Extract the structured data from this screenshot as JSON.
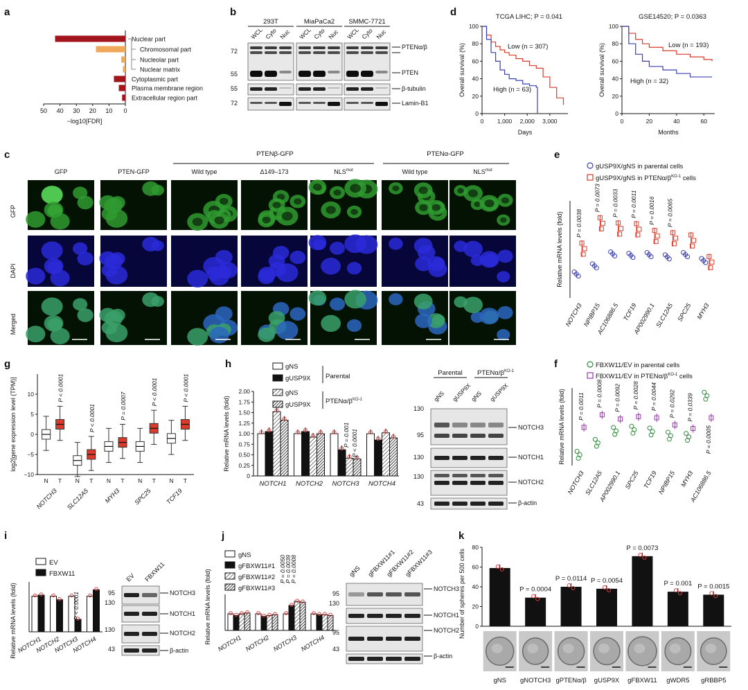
{
  "panels": {
    "a": {
      "letter": "a",
      "xlabel": "−log10[FDR]",
      "ticks": [
        "50",
        "40",
        "30",
        "20",
        "10",
        "0"
      ],
      "chart_data": {
        "type": "bar",
        "orientation": "horizontal",
        "xlabel": "−log10[FDR]",
        "xlim": [
          50,
          0
        ],
        "categories": [
          "Nuclear part",
          "Chromosomal part",
          "Nucleolar part",
          "Nuclear matrix",
          "Cytoplasmic part",
          "Plasma membrane region",
          "Extracellular region part"
        ],
        "values": [
          43,
          18,
          2.5,
          1.5,
          7,
          4,
          2
        ],
        "colors": [
          "#a3151c",
          "#f0a85a",
          "#f0a85a",
          "#f0a85a",
          "#a3151c",
          "#a3151c",
          "#a3151c"
        ]
      }
    },
    "b": {
      "letter": "b",
      "groups": [
        "293T",
        "MiaPaCa2",
        "SMMC-7721"
      ],
      "lanes": [
        "WCL",
        "Cyto",
        "Nuc"
      ],
      "mw": [
        "72",
        "55",
        "55",
        "72"
      ],
      "bands": [
        "PTENα/β",
        "PTEN",
        "β-tubulin",
        "Lamin-B1"
      ]
    },
    "d": {
      "letter": "d",
      "charts": [
        {
          "title": "TCGA LIHC; P = 0.041",
          "xlabel": "Days",
          "ylabel": "Overall survival (%)",
          "xticks": [
            "0",
            "1,000",
            "2,000",
            "3,000"
          ],
          "yticks": [
            "0",
            "20",
            "40",
            "60",
            "80",
            "100"
          ],
          "low_label": "Low (n = 307)",
          "high_label": "High (n = 63)",
          "chart_data": {
            "type": "line",
            "xlabel": "Days",
            "ylabel": "Overall survival (%)",
            "xlim": [
              0,
              3800
            ],
            "ylim": [
              0,
              100
            ],
            "series": [
              {
                "name": "Low (n = 307)",
                "color": "#d93a2b",
                "x": [
                  0,
                  200,
                  400,
                  600,
                  800,
                  1000,
                  1200,
                  1500,
                  1800,
                  2100,
                  2400,
                  2700,
                  3000,
                  3300,
                  3600
                ],
                "y": [
                  100,
                  90,
                  82,
                  77,
                  73,
                  70,
                  67,
                  63,
                  60,
                  55,
                  52,
                  42,
                  30,
                  18,
                  10
                ]
              },
              {
                "name": "High (n = 63)",
                "color": "#3a3fb0",
                "x": [
                  0,
                  200,
                  400,
                  600,
                  800,
                  1000,
                  1200,
                  1500,
                  1800,
                  2100,
                  2400,
                  2450
                ],
                "y": [
                  100,
                  85,
                  70,
                  60,
                  50,
                  45,
                  40,
                  38,
                  34,
                  32,
                  30,
                  0
                ]
              }
            ]
          }
        },
        {
          "title": "GSE14520; P = 0.0363",
          "xlabel": "Months",
          "ylabel": "Overall survival (%)",
          "xticks": [
            "0",
            "20",
            "40",
            "60"
          ],
          "yticks": [
            "0",
            "20",
            "40",
            "60",
            "80",
            "100"
          ],
          "low_label": "Low (n = 193)",
          "high_label": "High (n = 32)",
          "chart_data": {
            "type": "line",
            "xlabel": "Months",
            "ylabel": "Overall survival (%)",
            "xlim": [
              0,
              68
            ],
            "ylim": [
              0,
              100
            ],
            "series": [
              {
                "name": "Low (n = 193)",
                "color": "#d93a2b",
                "x": [
                  0,
                  5,
                  10,
                  15,
                  20,
                  30,
                  40,
                  50,
                  60,
                  66
                ],
                "y": [
                  100,
                  92,
                  85,
                  80,
                  76,
                  72,
                  68,
                  65,
                  62,
                  60
                ]
              },
              {
                "name": "High (n = 32)",
                "color": "#3a3fb0",
                "x": [
                  0,
                  5,
                  10,
                  15,
                  20,
                  30,
                  40,
                  50,
                  60,
                  66
                ],
                "y": [
                  100,
                  80,
                  68,
                  60,
                  54,
                  50,
                  46,
                  42,
                  42,
                  42
                ]
              }
            ]
          }
        }
      ]
    },
    "c": {
      "letter": "c",
      "header_beta": "PTENβ-GFP",
      "header_alpha": "PTENα-GFP",
      "columns": [
        "GFP",
        "PTEN-GFP",
        "Wild type",
        "Δ149–173",
        "NLSmut",
        "Wild type",
        "NLSmut"
      ],
      "rows": [
        "GFP",
        "DAPI",
        "Merged"
      ]
    },
    "e": {
      "letter": "e",
      "legend": [
        "gUSP9X/gNS in parental cells",
        "gUSP9X/gNS in PTENα/βKO-1 cells"
      ],
      "ylabel": "Relative mRNA levels (fold)",
      "genes": [
        "NOTCH3",
        "NPIBP15",
        "AC106886.5",
        "TCF19",
        "AP002990.1",
        "SLC12A5",
        "SPC25",
        "MYH3"
      ],
      "pvalues": [
        "P = 0.0038",
        "P = 0.0073",
        "P = 0.0033",
        "P = 0.0011",
        "P = 0.0016",
        "P = 0.0065",
        "",
        ""
      ],
      "chart_data": {
        "type": "scatter",
        "ylabel": "Relative mRNA levels (fold)",
        "categories": [
          "NOTCH3",
          "NPIBP15",
          "AC106886.5",
          "TCF19",
          "AP002990.1",
          "SLC12A5",
          "SPC25",
          "MYH3"
        ],
        "series": [
          {
            "name": "gUSP9X/gNS in parental cells",
            "color": "#3a3fb0",
            "values": [
              0.52,
              0.63,
              0.79,
              0.77,
              0.78,
              0.75,
              0.78,
              0.7
            ]
          },
          {
            "name": "gUSP9X/gNS in PTENα/βKO-1 cells",
            "color": "#d93a2b",
            "values": [
              0.86,
              1.2,
              1.13,
              1.12,
              1.03,
              1.0,
              0.97,
              0.68
            ]
          }
        ]
      }
    },
    "g": {
      "letter": "g",
      "ylabel": "log2[gene expression level (TPM)]",
      "yticks": [
        "−10",
        "−5",
        "0",
        "5",
        "10"
      ],
      "genes": [
        "NOTCH3",
        "SLC12A5",
        "MYH3",
        "SPC25",
        "TCF19"
      ],
      "pvalues": [
        "P < 0.0001",
        "P < 0.0001",
        "P = 0.0007",
        "P < 0.0001",
        "P < 0.0001"
      ],
      "nt": [
        "N",
        "T"
      ],
      "chart_data": {
        "type": "box",
        "ylabel": "log2[gene expression level (TPM)]",
        "ylim": [
          -10,
          15
        ],
        "categories": [
          "NOTCH3",
          "SLC12A5",
          "MYH3",
          "SPC25",
          "TCF19"
        ],
        "series": [
          {
            "name": "N",
            "medians": [
              0,
              -6.5,
              -3,
              -3,
              -1
            ]
          },
          {
            "name": "T",
            "medians": [
              2.5,
              -5,
              -2,
              1.5,
              2.5
            ]
          }
        ]
      }
    },
    "h": {
      "letter": "h",
      "legend": [
        "gNS",
        "gUSP9X",
        "gNS",
        "gUSP9X"
      ],
      "group_labels": [
        "Parental",
        "PTENα/βKO-1"
      ],
      "ylabel": "Relative mRNA levels (fold)",
      "yticks": [
        "0",
        "0.25",
        "0.50",
        "0.75",
        "1.00",
        "1.25",
        "1.50",
        "1.75",
        "2.00"
      ],
      "genes": [
        "NOTCH1",
        "NOTCH2",
        "NOTCH3",
        "NOTCH4"
      ],
      "pvalues": [
        "P = 0.001",
        "P < 0.0001"
      ],
      "blot_groups": [
        "Parental",
        "PTENα/βKO-1"
      ],
      "blot_lanes": [
        "gNS",
        "gUSP9X",
        "gNS",
        "gUSP9X"
      ],
      "blot_mw": [
        "130",
        "95",
        "130",
        "130",
        "43"
      ],
      "blot_bands": [
        "NOTCH3",
        "NOTCH1",
        "NOTCH2",
        "β-actin"
      ],
      "chart_data": {
        "type": "bar",
        "ylabel": "Relative mRNA levels (fold)",
        "ylim": [
          0,
          2.0
        ],
        "categories": [
          "NOTCH1",
          "NOTCH2",
          "NOTCH3",
          "NOTCH4"
        ],
        "series": [
          {
            "name": "gNS (Parental)",
            "values": [
              1.0,
              1.0,
              1.0,
              1.0
            ]
          },
          {
            "name": "gUSP9X (Parental)",
            "values": [
              1.05,
              1.05,
              0.62,
              0.85
            ]
          },
          {
            "name": "gNS (PTENα/βKO-1)",
            "values": [
              1.52,
              0.92,
              0.42,
              1.02
            ]
          },
          {
            "name": "gUSP9X (PTENα/βKO-1)",
            "values": [
              1.32,
              1.0,
              0.4,
              0.9
            ]
          }
        ]
      }
    },
    "f": {
      "letter": "f",
      "legend": [
        "FBXW11/EV in parental cells",
        "FBXW11/EV in PTENα/βKO-1 cells"
      ],
      "ylabel": "Relative mRNA levels (fold)",
      "genes": [
        "NOTCH3",
        "SLC12A5",
        "AP002990.1",
        "SPC25",
        "TCF19",
        "NPIBP15",
        "MYH3",
        "AC106886.5"
      ],
      "pvalues": [
        "P = 0.0011",
        "P = 0.0008",
        "P = 0.0092",
        "P = 0.0028",
        "P = 0.0044",
        "P = 0.0292",
        "P = 0.0339",
        "P = 0.0005"
      ],
      "chart_data": {
        "type": "scatter",
        "ylabel": "Relative mRNA levels (fold)",
        "categories": [
          "NOTCH3",
          "SLC12A5",
          "AP002990.1",
          "SPC25",
          "TCF19",
          "NPIBP15",
          "MYH3",
          "AC106886.5"
        ],
        "series": [
          {
            "name": "FBXW11/EV in parental cells",
            "color": "#2f8a3a",
            "values": [
              0.38,
              0.58,
              0.78,
              0.8,
              0.77,
              0.7,
              0.68,
              1.37
            ]
          },
          {
            "name": "FBXW11/EV in PTENα/βKO-1 cells",
            "color": "#9a35b0",
            "values": [
              0.84,
              1.05,
              0.98,
              1.02,
              1.0,
              0.88,
              0.82,
              1.0
            ]
          }
        ]
      }
    },
    "i": {
      "letter": "i",
      "legend": [
        "EV",
        "FBXW11"
      ],
      "ylabel": "Relative mRNA levels (fold)",
      "genes": [
        "NOTCH1",
        "NOTCH2",
        "NOTCH3",
        "NOTCH4"
      ],
      "pvalue": "P < 0.0001",
      "blot_lanes": [
        "EV",
        "FBXW11"
      ],
      "blot_mw": [
        "95",
        "130",
        "130",
        "43"
      ],
      "blot_bands": [
        "NOTCH3",
        "NOTCH1",
        "NOTCH2",
        "β-actin"
      ],
      "chart_data": {
        "type": "bar",
        "ylabel": "Relative mRNA levels (fold)",
        "categories": [
          "NOTCH1",
          "NOTCH2",
          "NOTCH3",
          "NOTCH4"
        ],
        "series": [
          {
            "name": "EV",
            "values": [
              1.0,
              1.0,
              1.0,
              1.0
            ]
          },
          {
            "name": "FBXW11",
            "values": [
              1.03,
              0.9,
              0.35,
              1.18
            ]
          }
        ]
      }
    },
    "j": {
      "letter": "j",
      "legend": [
        "gNS",
        "gFBXW11#1",
        "gFBXW11#2",
        "gFBXW11#3"
      ],
      "ylabel": "Relative mRNA levels (fold)",
      "genes": [
        "NOTCH1",
        "NOTCH2",
        "NOTCH3",
        "NOTCH4"
      ],
      "pvalues": [
        "P = 0.0050",
        "P = 0.0039",
        "P = 0.0008"
      ],
      "blot_lanes": [
        "gNS",
        "gFBXW11#1",
        "gFBXW11#2",
        "gFBXW11#3"
      ],
      "blot_mw": [
        "95",
        "130",
        "95",
        "43"
      ],
      "blot_bands": [
        "NOTCH3",
        "NOTCH1",
        "NOTCH2",
        "β-actin"
      ],
      "chart_data": {
        "type": "bar",
        "ylabel": "Relative mRNA levels (fold)",
        "categories": [
          "NOTCH1",
          "NOTCH2",
          "NOTCH3",
          "NOTCH4"
        ],
        "series": [
          {
            "name": "gNS",
            "values": [
              1.0,
              1.0,
              1.0,
              1.0
            ]
          },
          {
            "name": "gFBXW11#1",
            "values": [
              0.9,
              0.85,
              1.5,
              0.95
            ]
          },
          {
            "name": "gFBXW11#2",
            "values": [
              1.0,
              0.9,
              1.75,
              0.95
            ]
          },
          {
            "name": "gFBXW11#3",
            "values": [
              1.05,
              0.95,
              1.7,
              0.9
            ]
          }
        ]
      }
    },
    "k": {
      "letter": "k",
      "ylabel": "Number of spheres per 500 cells",
      "yticks": [
        "0",
        "20",
        "40",
        "60",
        "80"
      ],
      "categories": [
        "gNS",
        "gNOTCH3",
        "gPTENα/β",
        "gUSP9X",
        "gFBXW11",
        "gWDR5",
        "gRBBP5"
      ],
      "pvalues": [
        "",
        "P = 0.0004",
        "P = 0.0114",
        "P = 0.0054",
        "P = 0.0073",
        "P = 0.001",
        "P = 0.0015"
      ],
      "chart_data": {
        "type": "bar",
        "ylabel": "Number of spheres per 500 cells",
        "ylim": [
          0,
          80
        ],
        "categories": [
          "gNS",
          "gNOTCH3",
          "gPTENα/β",
          "gUSP9X",
          "gFBXW11",
          "gWDR5",
          "gRBBP5"
        ],
        "values": [
          59,
          29,
          40,
          38,
          71,
          35,
          32
        ]
      }
    }
  }
}
